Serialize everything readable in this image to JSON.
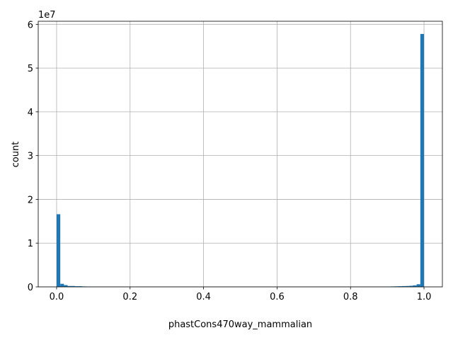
{
  "chart_data": {
    "type": "histogram",
    "xlabel": "phastCons470way_mammalian",
    "ylabel": "count",
    "y_offset_label": "1e7",
    "color": "#1f77b4",
    "grid": true,
    "xlim": [
      -0.05,
      1.05
    ],
    "ylim": [
      0,
      6.07
    ],
    "xticks": [
      {
        "value": 0,
        "label": "0.0"
      },
      0.2,
      0.4,
      0.6,
      0.8,
      {
        "value": 1,
        "label": "1.0"
      }
    ],
    "yticks": [
      0,
      1,
      2,
      3,
      4,
      5,
      6
    ],
    "bins": [
      0,
      0.01,
      0.02,
      0.03,
      0.04,
      0.05,
      0.06,
      0.07,
      0.08,
      0.09,
      0.1,
      0.11,
      0.12,
      0.13,
      0.14,
      0.15,
      0.16,
      0.17,
      0.18,
      0.19,
      0.2,
      0.21,
      0.22,
      0.23,
      0.24,
      0.25,
      0.26,
      0.27,
      0.28,
      0.29,
      0.3,
      0.31,
      0.32,
      0.33,
      0.34,
      0.35,
      0.36,
      0.37,
      0.38,
      0.39,
      0.4,
      0.41,
      0.42,
      0.43,
      0.44,
      0.45,
      0.46,
      0.47,
      0.48,
      0.49,
      0.5,
      0.51,
      0.52,
      0.53,
      0.54,
      0.55,
      0.56,
      0.57,
      0.58,
      0.59,
      0.6,
      0.61,
      0.62,
      0.63,
      0.64,
      0.65,
      0.66,
      0.67,
      0.68,
      0.69,
      0.7,
      0.71,
      0.72,
      0.73,
      0.74,
      0.75,
      0.76,
      0.77,
      0.78,
      0.79,
      0.8,
      0.81,
      0.82,
      0.83,
      0.84,
      0.85,
      0.86,
      0.87,
      0.88,
      0.89,
      0.9,
      0.91,
      0.92,
      0.93,
      0.94,
      0.95,
      0.96,
      0.97,
      0.98,
      0.99,
      1
    ],
    "values": [
      1.66,
      0.07,
      0.04,
      0.02,
      0.02,
      0.015,
      0.015,
      0.01,
      0.008,
      0.007,
      0.005,
      0.005,
      0.005,
      0.005,
      0.005,
      0.005,
      0.005,
      0.005,
      0.005,
      0.005,
      0.005,
      0.005,
      0.005,
      0.005,
      0.005,
      0.005,
      0.005,
      0.005,
      0.005,
      0.005,
      0.005,
      0.005,
      0.005,
      0.005,
      0.005,
      0.005,
      0.005,
      0.005,
      0.005,
      0.005,
      0.005,
      0.005,
      0.005,
      0.005,
      0.005,
      0.005,
      0.005,
      0.005,
      0.005,
      0.005,
      0.005,
      0.005,
      0.005,
      0.005,
      0.005,
      0.005,
      0.005,
      0.005,
      0.005,
      0.005,
      0.005,
      0.005,
      0.005,
      0.005,
      0.005,
      0.005,
      0.005,
      0.005,
      0.005,
      0.005,
      0.005,
      0.005,
      0.005,
      0.005,
      0.005,
      0.005,
      0.005,
      0.005,
      0.005,
      0.005,
      0.005,
      0.005,
      0.005,
      0.005,
      0.005,
      0.005,
      0.005,
      0.005,
      0.005,
      0.005,
      0.008,
      0.01,
      0.012,
      0.015,
      0.018,
      0.02,
      0.025,
      0.035,
      0.06,
      5.78
    ]
  }
}
